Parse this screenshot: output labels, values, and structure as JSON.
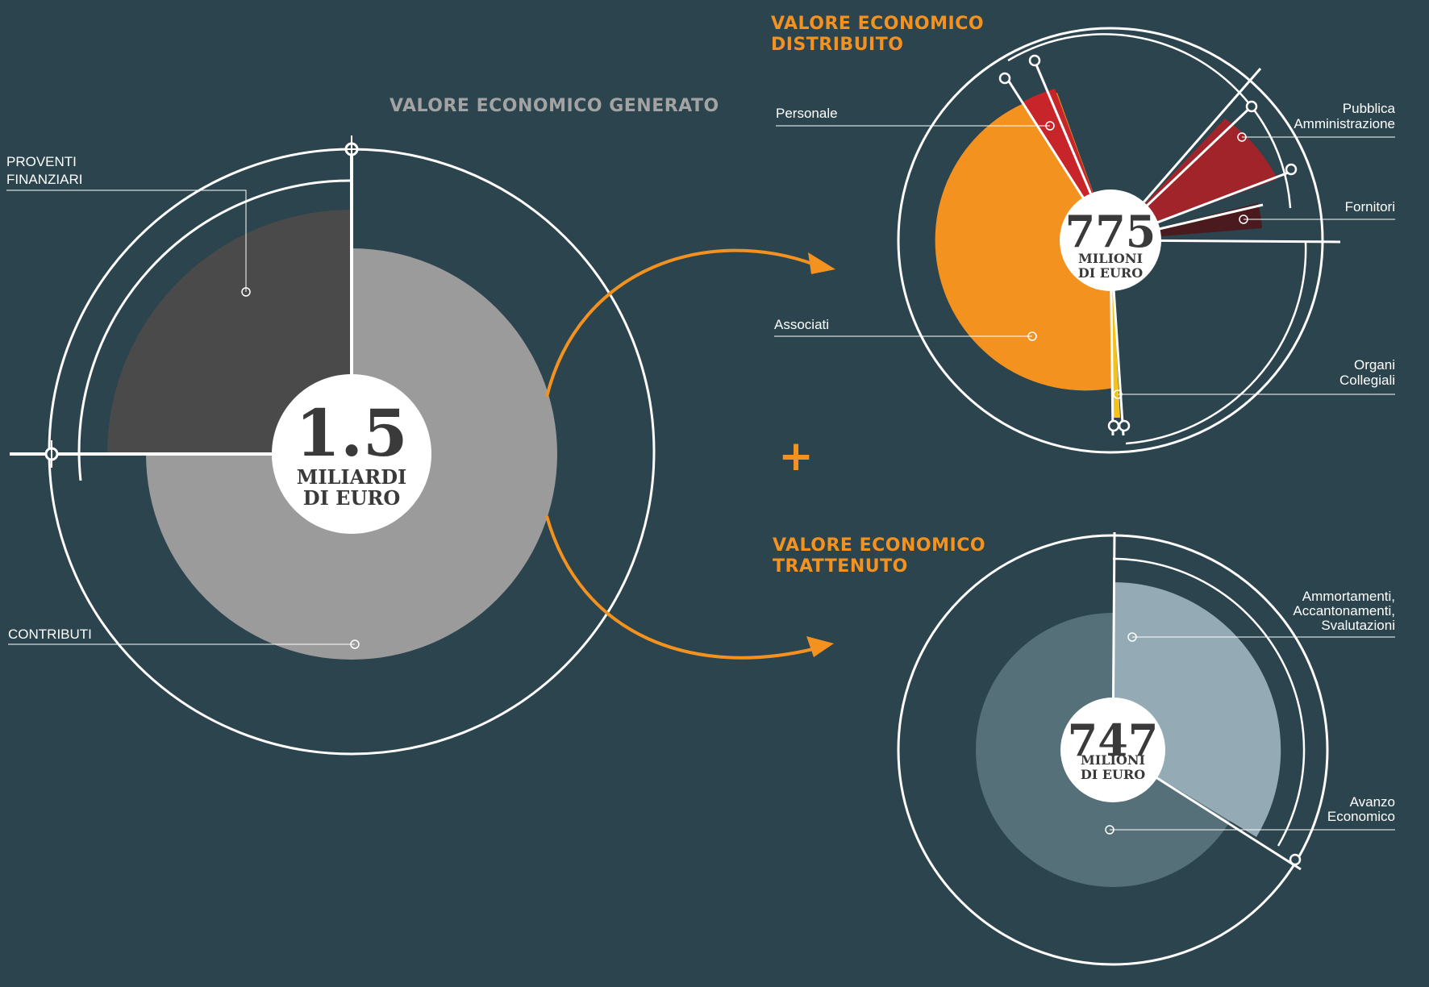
{
  "chart_data": [
    {
      "type": "pie",
      "title": "VALORE ECONOMICO GENERATO",
      "center_value": "1.5",
      "center_unit_line1": "MILIARDI",
      "center_unit_line2": "DI EURO",
      "slices": [
        {
          "label_line1": "PROVENTI",
          "label_line2": "FINANZIARI",
          "value": 25,
          "color": "#4a4a4a"
        },
        {
          "label_line1": "CONTRIBUTI",
          "label_line2": "",
          "value": 75,
          "color": "#9b9b9b"
        }
      ]
    },
    {
      "type": "pie",
      "title_line1": "VALORE ECONOMICO",
      "title_line2": "DISTRIBUITO",
      "center_value": "775",
      "center_unit_line1": "MILIONI",
      "center_unit_line2": "DI EURO",
      "slices": [
        {
          "label_line1": "Personale",
          "label_line2": "",
          "value": 4,
          "color": "#c8252b"
        },
        {
          "label_line1": "Pubblica",
          "label_line2": "Amministrazione",
          "value": 6,
          "color": "#a1242a"
        },
        {
          "label_line1": "Fornitori",
          "label_line2": "",
          "value": 2.5,
          "color": "#4a1a1e"
        },
        {
          "label_line1": "Associati",
          "label_line2": "",
          "value": 86.5,
          "color": "#f49220"
        },
        {
          "label_line1": "Organi",
          "label_line2": "Collegiali",
          "value": 1,
          "color": "#f5c21b"
        }
      ]
    },
    {
      "type": "pie",
      "title_line1": "VALORE ECONOMICO",
      "title_line2": "TRATTENUTO",
      "center_value": "747",
      "center_unit_line1": "MILIONI",
      "center_unit_line2": "DI EURO",
      "slices": [
        {
          "label_line1": "Ammortamenti,",
          "label_line2": "Accantonamenti,",
          "label_line3": "Svalutazioni",
          "value": 34,
          "color": "#94aab4"
        },
        {
          "label_line1": "Avanzo",
          "label_line2": "Economico",
          "value": 66,
          "color": "#567079"
        }
      ]
    }
  ],
  "plus_sign": "+",
  "colors": {
    "background": "#2b444d",
    "accent": "#f49220",
    "ring": "#ffffff"
  }
}
